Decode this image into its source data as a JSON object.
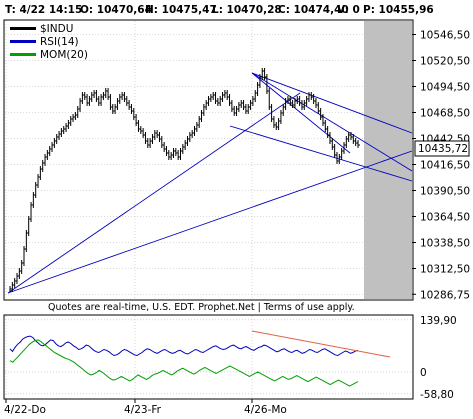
{
  "header": {
    "date": "T: 4/22 14:15",
    "open": "O: 10470,64",
    "high": "H: 10475,47",
    "low": "L: 10470,28",
    "close": "C: 10474,40",
    "volume": "V: 0",
    "prev": "P: 10455,96"
  },
  "legend": [
    {
      "label": "$INDU",
      "color": "#000000"
    },
    {
      "label": "RSI(14)",
      "color": "#0000c0"
    },
    {
      "label": "MOM(20)",
      "color": "#00a000"
    }
  ],
  "footer_note": "Quotes are real-time, U.S. EDT. Prophet.Net | Terms of use apply.",
  "last_price_label": "10435,72",
  "colors": {
    "price": "#000000",
    "rsi": "#0000c0",
    "mom": "#00a000",
    "trendline": "#0000c0",
    "indicator_trendline": "#e06040",
    "future_shade": "#c0c0c0",
    "grid": "#b8b8b8",
    "frame": "#000000",
    "last_price_box": "#ffffff",
    "lower_label": "#000080"
  },
  "chart_data": {
    "type": "line",
    "title": "",
    "xlabel": "",
    "ylabel": "",
    "x_ticks": [
      "4/22-Do",
      "4/23-Fr",
      "4/26-Mo"
    ],
    "price_panel": {
      "y_ticks": [
        "10546,50",
        "10520,50",
        "10494,50",
        "10468,50",
        "10442,50",
        "10416,50",
        "10390,50",
        "10364,50",
        "10338,50",
        "10312,50",
        "10286,75"
      ],
      "ylim": [
        10282,
        10560
      ],
      "series_name": "$INDU",
      "last_value": 10435.72,
      "bars": [
        10292,
        10296,
        10300,
        10305,
        10310,
        10318,
        10332,
        10348,
        10362,
        10376,
        10386,
        10396,
        10404,
        10412,
        10418,
        10424,
        10428,
        10432,
        10436,
        10440,
        10444,
        10447,
        10450,
        10452,
        10455,
        10458,
        10462,
        10464,
        10466,
        10472,
        10480,
        10486,
        10484,
        10478,
        10482,
        10486,
        10488,
        10482,
        10478,
        10484,
        10486,
        10490,
        10484,
        10474,
        10470,
        10474,
        10480,
        10484,
        10486,
        10482,
        10478,
        10474,
        10470,
        10464,
        10458,
        10452,
        10450,
        10446,
        10440,
        10436,
        10440,
        10444,
        10448,
        10446,
        10442,
        10436,
        10432,
        10428,
        10424,
        10426,
        10430,
        10428,
        10424,
        10430,
        10434,
        10438,
        10442,
        10446,
        10448,
        10452,
        10456,
        10462,
        10468,
        10474,
        10478,
        10482,
        10484,
        10486,
        10480,
        10478,
        10482,
        10486,
        10488,
        10484,
        10478,
        10472,
        10468,
        10472,
        10476,
        10478,
        10474,
        10470,
        10474,
        10478,
        10482,
        10488,
        10496,
        10504,
        10510,
        10504,
        10490,
        10474,
        10462,
        10456,
        10454,
        10460,
        10468,
        10474,
        10480,
        10482,
        10478,
        10476,
        10480,
        10482,
        10478,
        10474,
        10478,
        10482,
        10486,
        10484,
        10480,
        10476,
        10470,
        10464,
        10458,
        10452,
        10446,
        10440,
        10434,
        10426,
        10420,
        10424,
        10430,
        10436,
        10442,
        10446,
        10444,
        10440,
        10438,
        10436
      ]
    },
    "lower_panel": {
      "y_ticks": [
        "139,90",
        "0",
        "-58,80"
      ],
      "ylim": [
        -70,
        150
      ],
      "series": [
        {
          "name": "RSI(14)",
          "values": [
            62,
            55,
            66,
            74,
            80,
            88,
            92,
            95,
            96,
            92,
            84,
            78,
            72,
            70,
            74,
            80,
            86,
            84,
            76,
            70,
            68,
            72,
            78,
            80,
            76,
            70,
            66,
            60,
            62,
            66,
            72,
            70,
            64,
            58,
            54,
            52,
            56,
            60,
            58,
            54,
            48,
            44,
            46,
            50,
            56,
            60,
            58,
            54,
            50,
            46,
            44,
            48,
            52,
            58,
            62,
            60,
            56,
            52,
            50,
            54,
            58,
            60,
            56,
            52,
            50,
            52,
            56,
            58,
            54,
            50,
            48,
            52,
            56,
            60,
            58,
            54,
            52,
            56,
            60,
            64,
            68,
            70,
            66,
            62,
            60,
            62,
            66,
            70,
            72,
            68,
            64,
            62,
            66,
            68,
            64,
            60,
            58,
            62,
            66,
            68,
            72,
            70,
            66,
            62,
            58,
            54,
            56,
            60,
            62,
            58,
            54,
            52,
            56,
            58,
            54,
            50,
            52,
            56,
            60,
            58,
            54,
            52,
            56,
            60,
            62,
            58,
            54,
            50,
            46,
            44,
            48,
            52,
            56,
            54,
            50,
            52,
            56,
            58
          ]
        },
        {
          "name": "MOM(20)",
          "values": [
            30,
            26,
            34,
            42,
            50,
            58,
            66,
            74,
            80,
            84,
            86,
            82,
            76,
            70,
            64,
            58,
            52,
            48,
            44,
            40,
            36,
            34,
            30,
            26,
            20,
            14,
            8,
            2,
            -4,
            -8,
            -6,
            -2,
            4,
            0,
            -6,
            -12,
            -18,
            -22,
            -20,
            -16,
            -12,
            -16,
            -20,
            -24,
            -20,
            -14,
            -8,
            -12,
            -16,
            -20,
            -16,
            -10,
            -6,
            -4,
            0,
            4,
            0,
            -4,
            -8,
            -4,
            2,
            6,
            10,
            6,
            2,
            -2,
            -6,
            -2,
            4,
            8,
            12,
            8,
            4,
            0,
            -4,
            0,
            4,
            8,
            12,
            16,
            12,
            8,
            4,
            0,
            -4,
            -8,
            -12,
            -8,
            -4,
            0,
            -4,
            -8,
            -12,
            -16,
            -20,
            -24,
            -20,
            -16,
            -12,
            -16,
            -20,
            -18,
            -14,
            -10,
            -14,
            -18,
            -22,
            -26,
            -22,
            -18,
            -14,
            -18,
            -22,
            -26,
            -30,
            -34,
            -30,
            -26,
            -22,
            -26,
            -30,
            -34,
            -38,
            -34,
            -30,
            -26
          ]
        }
      ]
    },
    "trendlines": [
      {
        "panel": "price",
        "from": [
          0,
          10288
        ],
        "to": [
          1,
          10430
        ]
      },
      {
        "panel": "price",
        "from": [
          0,
          10288
        ],
        "to": [
          1,
          10478
        ]
      }
    ],
    "future_shaded": true,
    "grid": true
  }
}
